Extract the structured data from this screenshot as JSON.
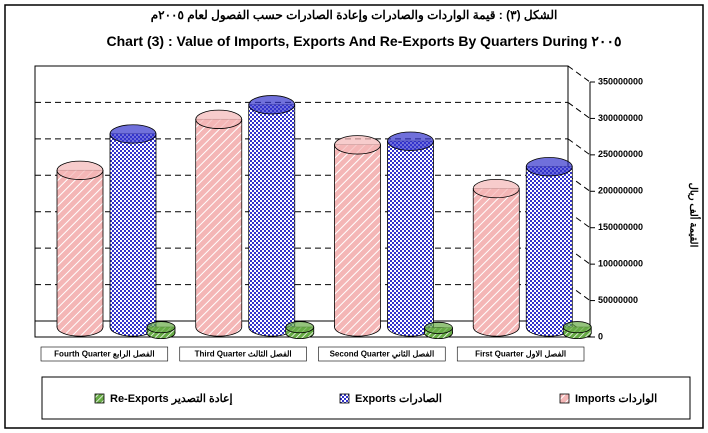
{
  "chart_data": {
    "type": "bar",
    "title": "الشكل (٣) : قيمة الواردات والصادرات وإعادة الصادرات حسب الفصول لعام ٢٠٠٥م",
    "subtitle": "Chart (3) : Value of Imports, Exports And Re-Exports By Quarters During ٢٠٠٥",
    "y_label": "القيمة ألف ريال",
    "categories": [
      "Fourth Quarter الفصل الرابع",
      "Third Quarter الفصل الثالث",
      "Second Quarter الفصل الثاني",
      "First Quarter الفصل الاول"
    ],
    "series": [
      {
        "name": "Imports الواردات",
        "color": "#f4b6b6",
        "values": [
          215000000,
          285000000,
          250000000,
          190000000
        ]
      },
      {
        "name": "Exports الصادرات",
        "color": "#3333cc",
        "values": [
          265000000,
          305000000,
          255000000,
          220000000
        ]
      },
      {
        "name": "Re-Exports إعادة التصدير",
        "color": "#66aa44",
        "values": [
          8000000,
          8000000,
          7000000,
          8000000
        ]
      }
    ],
    "ylim": [
      0,
      350000000
    ],
    "yticks": [
      0,
      50000000,
      100000000,
      150000000,
      200000000,
      250000000,
      300000000,
      350000000
    ],
    "grid": true,
    "legend": "bottom"
  }
}
